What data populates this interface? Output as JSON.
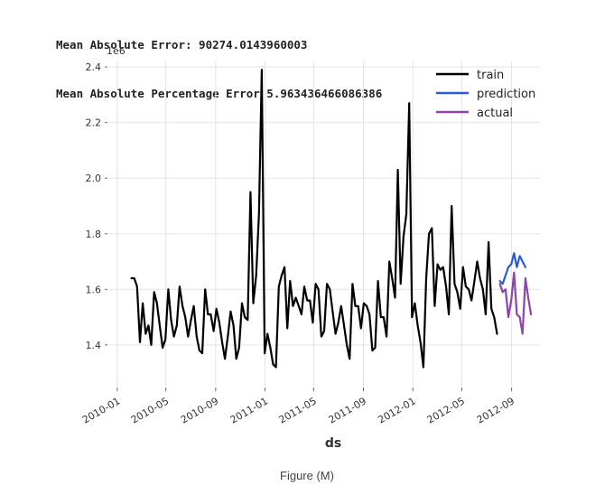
{
  "console": {
    "line1": "Mean Absolute Error: 90274.0143960003",
    "line2": "Mean Absolute Percentage Error 5.963436466086386"
  },
  "caption": "Figure (M)",
  "chart_data": {
    "type": "line",
    "xlabel": "ds",
    "ylabel": "",
    "y_scale_label": "1e6",
    "ylim": [
      1.25,
      2.42
    ],
    "xlim": [
      "2009-12-10",
      "2012-11-10"
    ],
    "y_ticks": [
      "1.4",
      "1.6",
      "1.8",
      "2.0",
      "2.2",
      "2.4"
    ],
    "x_ticks": [
      "2010-01",
      "2010-05",
      "2010-09",
      "2011-01",
      "2011-05",
      "2011-09",
      "2012-01",
      "2012-05",
      "2012-09"
    ],
    "legend_position": "top-right",
    "grid": true,
    "series": [
      {
        "name": "train",
        "color": "#000000",
        "points": [
          [
            "2010-02-05",
            1.64
          ],
          [
            "2010-02-12",
            1.64
          ],
          [
            "2010-02-19",
            1.61
          ],
          [
            "2010-02-26",
            1.41
          ],
          [
            "2010-03-05",
            1.55
          ],
          [
            "2010-03-12",
            1.44
          ],
          [
            "2010-03-19",
            1.47
          ],
          [
            "2010-03-26",
            1.4
          ],
          [
            "2010-04-02",
            1.59
          ],
          [
            "2010-04-09",
            1.55
          ],
          [
            "2010-04-16",
            1.47
          ],
          [
            "2010-04-23",
            1.39
          ],
          [
            "2010-04-30",
            1.42
          ],
          [
            "2010-05-07",
            1.6
          ],
          [
            "2010-05-14",
            1.49
          ],
          [
            "2010-05-21",
            1.43
          ],
          [
            "2010-05-28",
            1.47
          ],
          [
            "2010-06-04",
            1.61
          ],
          [
            "2010-06-11",
            1.54
          ],
          [
            "2010-06-18",
            1.5
          ],
          [
            "2010-06-25",
            1.43
          ],
          [
            "2010-07-02",
            1.49
          ],
          [
            "2010-07-09",
            1.54
          ],
          [
            "2010-07-16",
            1.43
          ],
          [
            "2010-07-23",
            1.38
          ],
          [
            "2010-07-30",
            1.37
          ],
          [
            "2010-08-06",
            1.6
          ],
          [
            "2010-08-13",
            1.51
          ],
          [
            "2010-08-20",
            1.51
          ],
          [
            "2010-08-27",
            1.45
          ],
          [
            "2010-09-03",
            1.53
          ],
          [
            "2010-09-10",
            1.48
          ],
          [
            "2010-09-17",
            1.41
          ],
          [
            "2010-09-24",
            1.35
          ],
          [
            "2010-10-01",
            1.43
          ],
          [
            "2010-10-08",
            1.52
          ],
          [
            "2010-10-15",
            1.47
          ],
          [
            "2010-10-22",
            1.35
          ],
          [
            "2010-10-29",
            1.39
          ],
          [
            "2010-11-05",
            1.55
          ],
          [
            "2010-11-12",
            1.5
          ],
          [
            "2010-11-19",
            1.49
          ],
          [
            "2010-11-26",
            1.95
          ],
          [
            "2010-12-03",
            1.55
          ],
          [
            "2010-12-10",
            1.65
          ],
          [
            "2010-12-17",
            1.87
          ],
          [
            "2010-12-24",
            2.39
          ],
          [
            "2010-12-31",
            1.37
          ],
          [
            "2011-01-07",
            1.44
          ],
          [
            "2011-01-14",
            1.39
          ],
          [
            "2011-01-21",
            1.33
          ],
          [
            "2011-01-28",
            1.32
          ],
          [
            "2011-02-04",
            1.61
          ],
          [
            "2011-02-11",
            1.65
          ],
          [
            "2011-02-18",
            1.68
          ],
          [
            "2011-02-25",
            1.46
          ],
          [
            "2011-03-04",
            1.63
          ],
          [
            "2011-03-11",
            1.54
          ],
          [
            "2011-03-18",
            1.57
          ],
          [
            "2011-03-25",
            1.54
          ],
          [
            "2011-04-01",
            1.51
          ],
          [
            "2011-04-08",
            1.61
          ],
          [
            "2011-04-15",
            1.56
          ],
          [
            "2011-04-22",
            1.56
          ],
          [
            "2011-04-29",
            1.48
          ],
          [
            "2011-05-06",
            1.62
          ],
          [
            "2011-05-13",
            1.6
          ],
          [
            "2011-05-20",
            1.43
          ],
          [
            "2011-05-27",
            1.45
          ],
          [
            "2011-06-03",
            1.62
          ],
          [
            "2011-06-10",
            1.6
          ],
          [
            "2011-06-17",
            1.52
          ],
          [
            "2011-06-24",
            1.44
          ],
          [
            "2011-07-01",
            1.48
          ],
          [
            "2011-07-08",
            1.54
          ],
          [
            "2011-07-15",
            1.47
          ],
          [
            "2011-07-22",
            1.4
          ],
          [
            "2011-07-29",
            1.35
          ],
          [
            "2011-08-05",
            1.62
          ],
          [
            "2011-08-12",
            1.54
          ],
          [
            "2011-08-19",
            1.54
          ],
          [
            "2011-08-26",
            1.46
          ],
          [
            "2011-09-02",
            1.55
          ],
          [
            "2011-09-09",
            1.54
          ],
          [
            "2011-09-16",
            1.51
          ],
          [
            "2011-09-23",
            1.38
          ],
          [
            "2011-09-30",
            1.39
          ],
          [
            "2011-10-07",
            1.63
          ],
          [
            "2011-10-14",
            1.5
          ],
          [
            "2011-10-21",
            1.5
          ],
          [
            "2011-10-28",
            1.43
          ],
          [
            "2011-11-04",
            1.7
          ],
          [
            "2011-11-11",
            1.64
          ],
          [
            "2011-11-18",
            1.57
          ],
          [
            "2011-11-25",
            2.03
          ],
          [
            "2011-12-02",
            1.62
          ],
          [
            "2011-12-09",
            1.79
          ],
          [
            "2011-12-16",
            1.87
          ],
          [
            "2011-12-23",
            2.27
          ],
          [
            "2011-12-30",
            1.5
          ],
          [
            "2012-01-06",
            1.55
          ],
          [
            "2012-01-13",
            1.47
          ],
          [
            "2012-01-20",
            1.41
          ],
          [
            "2012-01-27",
            1.32
          ],
          [
            "2012-02-03",
            1.64
          ],
          [
            "2012-02-10",
            1.8
          ],
          [
            "2012-02-17",
            1.82
          ],
          [
            "2012-02-24",
            1.54
          ],
          [
            "2012-03-02",
            1.69
          ],
          [
            "2012-03-09",
            1.67
          ],
          [
            "2012-03-16",
            1.68
          ],
          [
            "2012-03-23",
            1.61
          ],
          [
            "2012-03-30",
            1.51
          ],
          [
            "2012-04-06",
            1.9
          ],
          [
            "2012-04-13",
            1.62
          ],
          [
            "2012-04-20",
            1.59
          ],
          [
            "2012-04-27",
            1.53
          ],
          [
            "2012-05-04",
            1.68
          ],
          [
            "2012-05-11",
            1.61
          ],
          [
            "2012-05-18",
            1.6
          ],
          [
            "2012-05-25",
            1.56
          ],
          [
            "2012-06-01",
            1.63
          ],
          [
            "2012-06-08",
            1.7
          ],
          [
            "2012-06-15",
            1.64
          ],
          [
            "2012-06-22",
            1.6
          ],
          [
            "2012-06-29",
            1.51
          ],
          [
            "2012-07-06",
            1.77
          ],
          [
            "2012-07-13",
            1.53
          ],
          [
            "2012-07-20",
            1.5
          ],
          [
            "2012-07-27",
            1.44
          ]
        ]
      },
      {
        "name": "prediction",
        "color": "#2b5bd7",
        "points": [
          [
            "2012-08-03",
            1.63
          ],
          [
            "2012-08-10",
            1.62
          ],
          [
            "2012-08-17",
            1.65
          ],
          [
            "2012-08-24",
            1.68
          ],
          [
            "2012-08-31",
            1.69
          ],
          [
            "2012-09-07",
            1.73
          ],
          [
            "2012-09-14",
            1.68
          ],
          [
            "2012-09-21",
            1.72
          ],
          [
            "2012-09-28",
            1.7
          ],
          [
            "2012-10-05",
            1.68
          ]
        ]
      },
      {
        "name": "actual",
        "color": "#8e44ad",
        "points": [
          [
            "2012-08-03",
            1.62
          ],
          [
            "2012-08-10",
            1.59
          ],
          [
            "2012-08-17",
            1.6
          ],
          [
            "2012-08-24",
            1.5
          ],
          [
            "2012-08-31",
            1.56
          ],
          [
            "2012-09-07",
            1.66
          ],
          [
            "2012-09-14",
            1.51
          ],
          [
            "2012-09-21",
            1.5
          ],
          [
            "2012-09-28",
            1.44
          ],
          [
            "2012-10-05",
            1.64
          ],
          [
            "2012-10-12",
            1.57
          ],
          [
            "2012-10-19",
            1.51
          ]
        ]
      }
    ]
  }
}
